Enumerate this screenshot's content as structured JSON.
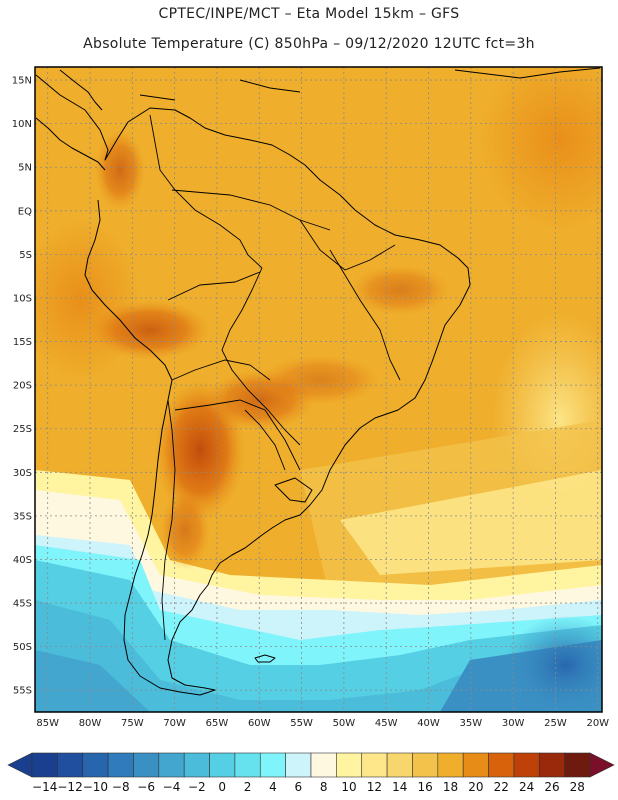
{
  "header": {
    "line1": "CPTEC/INPE/MCT –  Eta Model 15km – GFS",
    "line2": "Absolute Temperature (C) 850hPa – 09/12/2020 12UTC fct=3h"
  },
  "map": {
    "lat_labels": [
      "15N",
      "10N",
      "5N",
      "EQ",
      "5S",
      "10S",
      "15S",
      "20S",
      "25S",
      "30S",
      "35S",
      "40S",
      "45S",
      "50S",
      "55S"
    ],
    "lon_labels": [
      "85W",
      "80W",
      "75W",
      "70W",
      "65W",
      "60W",
      "55W",
      "50W",
      "45W",
      "40W",
      "35W",
      "30W",
      "25W",
      "20W"
    ],
    "lat_range": [
      -57.5,
      16.5
    ],
    "lon_range": [
      -86.5,
      -19.5
    ],
    "grid": true
  },
  "colorbar": {
    "labels": [
      "-14",
      "-12",
      "-10",
      "-8",
      "-6",
      "-4",
      "-2",
      "0",
      "2",
      "4",
      "6",
      "8",
      "10",
      "12",
      "14",
      "16",
      "18",
      "20",
      "22",
      "24",
      "26",
      "28"
    ],
    "colors": [
      "#1a3f8f",
      "#1f4f9e",
      "#2765ad",
      "#2f7bbb",
      "#3a90c3",
      "#43a6cf",
      "#4bbcd9",
      "#55cfe3",
      "#66e2ee",
      "#7ff5fb",
      "#cdf3fb",
      "#fff8e0",
      "#fff4a0",
      "#fde78a",
      "#f8d66e",
      "#f2c24a",
      "#efae2b",
      "#e88c18",
      "#d8620c",
      "#bd4108",
      "#9a280a",
      "#6f1a0f"
    ]
  }
}
